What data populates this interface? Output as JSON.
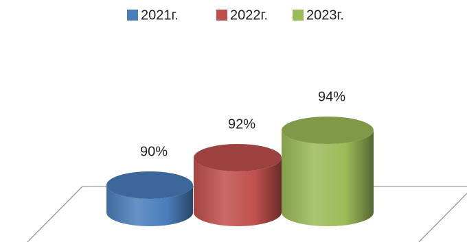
{
  "chart_data": {
    "type": "bar",
    "categories": [
      null
    ],
    "series": [
      {
        "name": "2021г.",
        "color": "#4a7ebb",
        "values": [
          90
        ],
        "value_labels": [
          "90%"
        ]
      },
      {
        "name": "2022г.",
        "color": "#c0504d",
        "values": [
          92
        ],
        "value_labels": [
          "92%"
        ]
      },
      {
        "name": "2023г.",
        "color": "#9bbb59",
        "values": [
          94
        ],
        "value_labels": [
          "94%"
        ]
      }
    ],
    "ylim": [
      88,
      96
    ],
    "legend": "top"
  }
}
